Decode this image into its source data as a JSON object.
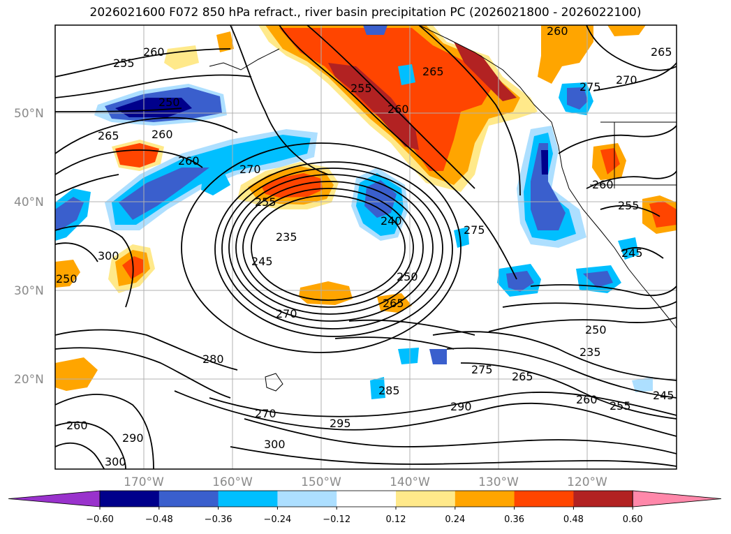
{
  "title": "2026021600 F072 850 hPa refract., river basin precipitation PC (2026021800 - 2026022100)",
  "map": {
    "lat_labels": [
      "50°N",
      "40°N",
      "30°N",
      "20°N"
    ],
    "lon_labels": [
      "170°W",
      "160°W",
      "150°W",
      "140°W",
      "130°W",
      "120°W"
    ],
    "contour_labels": [
      "260",
      "255",
      "250",
      "265",
      "260",
      "260",
      "270",
      "255",
      "240",
      "275",
      "235",
      "245",
      "250",
      "265",
      "270",
      "280",
      "270",
      "300",
      "300",
      "295",
      "285",
      "290",
      "275",
      "265",
      "260",
      "255",
      "250",
      "235",
      "245",
      "250",
      "260",
      "290",
      "300",
      "265",
      "270",
      "275",
      "265",
      "255",
      "260",
      "260",
      "255",
      "245",
      "260"
    ]
  },
  "colorbar": {
    "ticks": [
      "−0.60",
      "−0.48",
      "−0.36",
      "−0.24",
      "−0.12",
      "0.12",
      "0.24",
      "0.36",
      "0.48",
      "0.60"
    ],
    "colors": [
      "#9932CC",
      "#00008B",
      "#3A5FCD",
      "#00BFFF",
      "#ADDFFF",
      "#FFFFFF",
      "#FFE98A",
      "#FFA500",
      "#FF4500",
      "#B22222",
      "#FF88AA"
    ]
  },
  "colors": {
    "shade_pos_light": "#FFE98A",
    "shade_pos_mid": "#FFA500",
    "shade_pos_strong": "#FF4500",
    "shade_pos_max": "#B22222",
    "shade_neg_light": "#ADDFFF",
    "shade_neg_mid": "#00BFFF",
    "shade_neg_strong": "#3A5FCD",
    "shade_neg_max": "#00008B"
  }
}
